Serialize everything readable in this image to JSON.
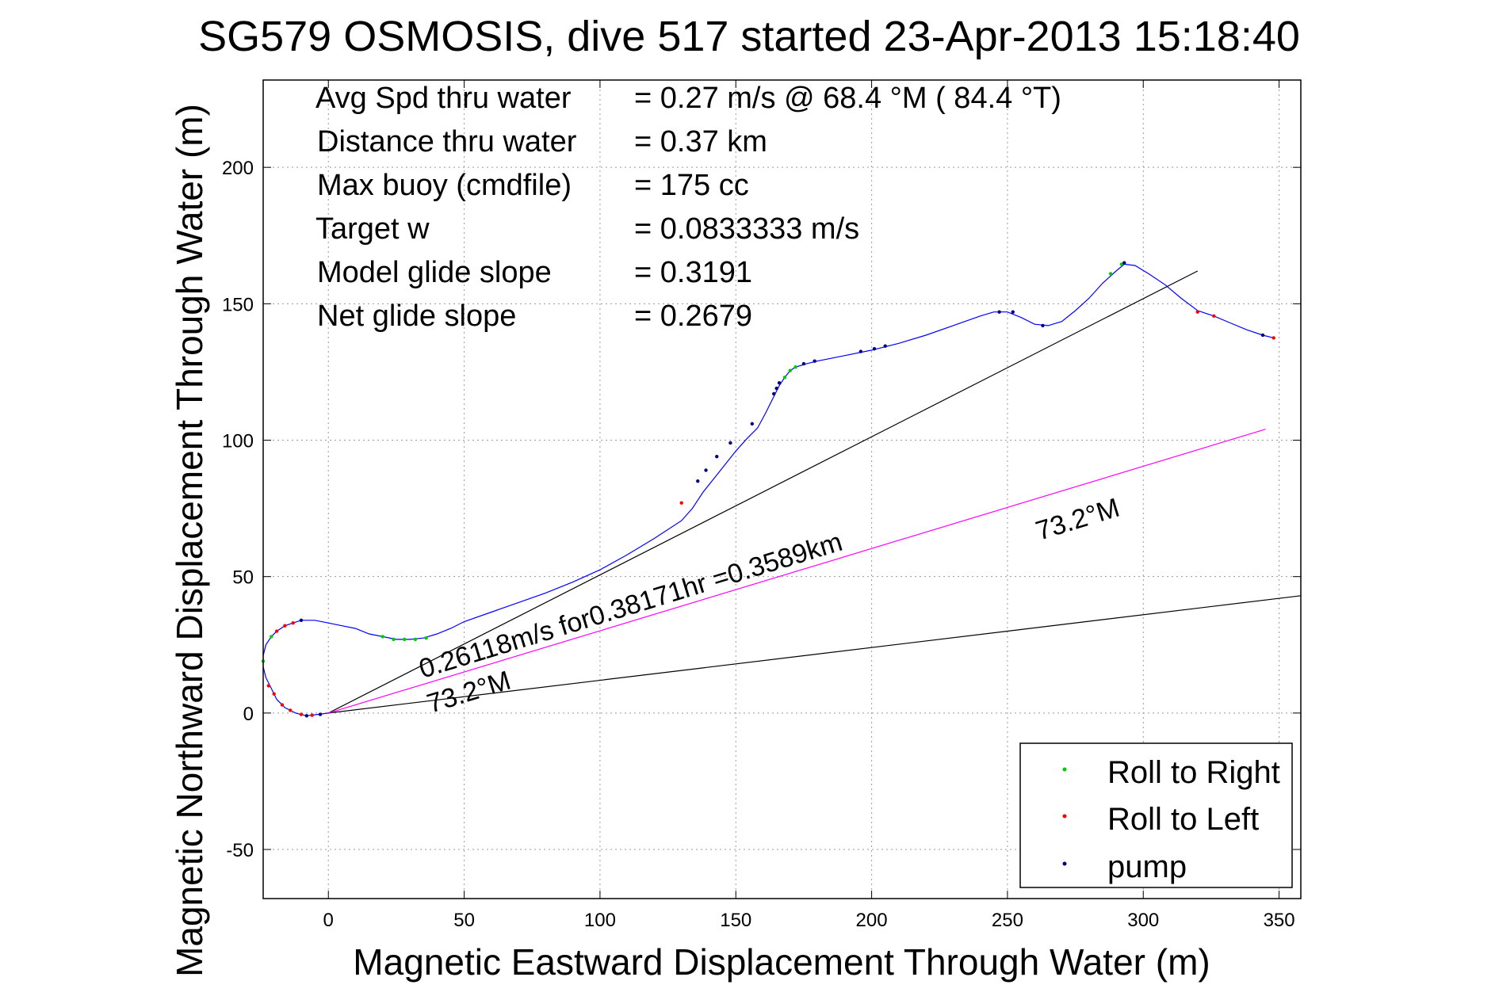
{
  "title": "SG579 OSMOSIS, dive 517 started 23-Apr-2013 15:18:40",
  "stats": [
    {
      "label": "Avg Spd thru water",
      "value": "=  0.27 m/s @  68.4 °M ( 84.4 °T)"
    },
    {
      "label": "Distance thru water",
      "value": "=  0.37 km"
    },
    {
      "label": "Max buoy (cmdfile)",
      "value": "= 175 cc"
    },
    {
      "label": "Target w",
      "value": "= 0.0833333 m/s"
    },
    {
      "label": "Model glide slope",
      "value": "= 0.3191"
    },
    {
      "label": "Net glide slope",
      "value": "= 0.2679"
    }
  ],
  "annotations": {
    "net_vector": "0.26118m/s for0.38171hr =0.3589km",
    "heading_near": "73.2°M",
    "heading_far": "73.2°M"
  },
  "legend": [
    {
      "label": "Roll to Right",
      "color": "#00cc00"
    },
    {
      "label": "Roll to Left",
      "color": "#ff0000"
    },
    {
      "label": "pump",
      "color": "#000080"
    }
  ],
  "chart_data": {
    "type": "line",
    "title": "SG579 OSMOSIS, dive 517 started 23-Apr-2013 15:18:40",
    "xlabel": "Magnetic Eastward Displacement Through Water (m)",
    "ylabel": "Magnetic Northward Displacement Through Water (m)",
    "xlim": [
      -24,
      358
    ],
    "ylim": [
      -68,
      232
    ],
    "xticks": [
      0,
      50,
      100,
      150,
      200,
      250,
      300,
      350
    ],
    "yticks": [
      -50,
      0,
      50,
      100,
      150,
      200
    ],
    "grid": true,
    "legend_position": "bottom-right",
    "series": [
      {
        "name": "track",
        "color": "#0000ff",
        "points": [
          [
            0,
            0
          ],
          [
            -4,
            -0.5
          ],
          [
            -8,
            -1
          ],
          [
            -12,
            0
          ],
          [
            -16,
            2
          ],
          [
            -19,
            5
          ],
          [
            -21,
            9
          ],
          [
            -23,
            13
          ],
          [
            -24,
            17
          ],
          [
            -24,
            21
          ],
          [
            -23,
            25
          ],
          [
            -21,
            28
          ],
          [
            -19,
            30
          ],
          [
            -16,
            32
          ],
          [
            -13,
            33
          ],
          [
            -10,
            34
          ],
          [
            -5,
            34
          ],
          [
            0,
            33
          ],
          [
            5,
            32
          ],
          [
            10,
            31
          ],
          [
            15,
            29
          ],
          [
            20,
            28
          ],
          [
            25,
            27
          ],
          [
            30,
            27
          ],
          [
            35,
            27.5
          ],
          [
            40,
            29
          ],
          [
            45,
            31
          ],
          [
            50,
            33.5
          ],
          [
            60,
            37
          ],
          [
            70,
            40.5
          ],
          [
            80,
            44
          ],
          [
            90,
            48
          ],
          [
            100,
            52.5
          ],
          [
            110,
            58
          ],
          [
            120,
            64
          ],
          [
            130,
            70.5
          ],
          [
            134,
            75
          ],
          [
            138,
            81
          ],
          [
            142,
            86
          ],
          [
            146,
            91
          ],
          [
            150,
            96
          ],
          [
            154,
            100.5
          ],
          [
            158,
            104.5
          ],
          [
            161,
            110
          ],
          [
            164,
            116
          ],
          [
            166,
            120
          ],
          [
            168,
            123
          ],
          [
            170,
            125.5
          ],
          [
            172,
            126.8
          ],
          [
            176,
            128
          ],
          [
            180,
            129
          ],
          [
            190,
            131
          ],
          [
            200,
            133
          ],
          [
            210,
            135.5
          ],
          [
            220,
            138.5
          ],
          [
            230,
            142
          ],
          [
            240,
            145.5
          ],
          [
            245,
            147
          ],
          [
            250,
            147
          ],
          [
            255,
            145
          ],
          [
            260,
            142.5
          ],
          [
            265,
            142
          ],
          [
            270,
            143.5
          ],
          [
            275,
            147.5
          ],
          [
            280,
            152
          ],
          [
            285,
            157.5
          ],
          [
            290,
            162
          ],
          [
            293,
            164.5
          ],
          [
            297,
            164
          ],
          [
            302,
            161
          ],
          [
            308,
            157
          ],
          [
            314,
            152
          ],
          [
            320,
            147.5
          ],
          [
            326,
            145.5
          ],
          [
            332,
            143
          ],
          [
            338,
            140.5
          ],
          [
            344,
            138.5
          ],
          [
            348,
            137.5
          ]
        ]
      },
      {
        "name": "model glide line",
        "color": "#000000",
        "points": [
          [
            0,
            0
          ],
          [
            320,
            162
          ]
        ]
      },
      {
        "name": "net heading line",
        "color": "#ff00ff",
        "points": [
          [
            0,
            0
          ],
          [
            345,
            104
          ]
        ]
      },
      {
        "name": "lower reference line",
        "color": "#000000",
        "points": [
          [
            0,
            0
          ],
          [
            358,
            43
          ]
        ]
      }
    ],
    "markers": {
      "roll_right": [
        [
          -24,
          19
        ],
        [
          -21,
          28
        ],
        [
          20,
          28
        ],
        [
          24,
          27
        ],
        [
          28,
          27
        ],
        [
          32,
          27
        ],
        [
          36,
          27.5
        ],
        [
          168,
          123
        ],
        [
          170,
          125.5
        ],
        [
          172,
          126.8
        ],
        [
          288,
          161
        ],
        [
          292,
          164.5
        ]
      ],
      "roll_left": [
        [
          -22,
          10
        ],
        [
          -20,
          7
        ],
        [
          -17,
          3
        ],
        [
          -14,
          1
        ],
        [
          -10,
          -0.5
        ],
        [
          -6,
          -0.8
        ],
        [
          -19,
          30
        ],
        [
          -16,
          32
        ],
        [
          -13,
          33
        ],
        [
          130,
          77
        ],
        [
          320,
          147
        ],
        [
          326,
          145.5
        ],
        [
          348,
          137.5
        ]
      ],
      "pump": [
        [
          -8,
          -1
        ],
        [
          -3,
          -0.5
        ],
        [
          -10,
          34
        ],
        [
          136,
          85
        ],
        [
          139,
          89
        ],
        [
          143,
          94
        ],
        [
          148,
          99
        ],
        [
          156,
          106
        ],
        [
          164,
          117
        ],
        [
          165,
          119
        ],
        [
          166,
          121
        ],
        [
          175,
          128
        ],
        [
          179,
          129
        ],
        [
          196,
          132.5
        ],
        [
          201,
          133.5
        ],
        [
          205,
          134.5
        ],
        [
          247,
          147
        ],
        [
          252,
          147
        ],
        [
          263,
          142
        ],
        [
          293,
          165
        ],
        [
          344,
          138.5
        ]
      ]
    }
  }
}
